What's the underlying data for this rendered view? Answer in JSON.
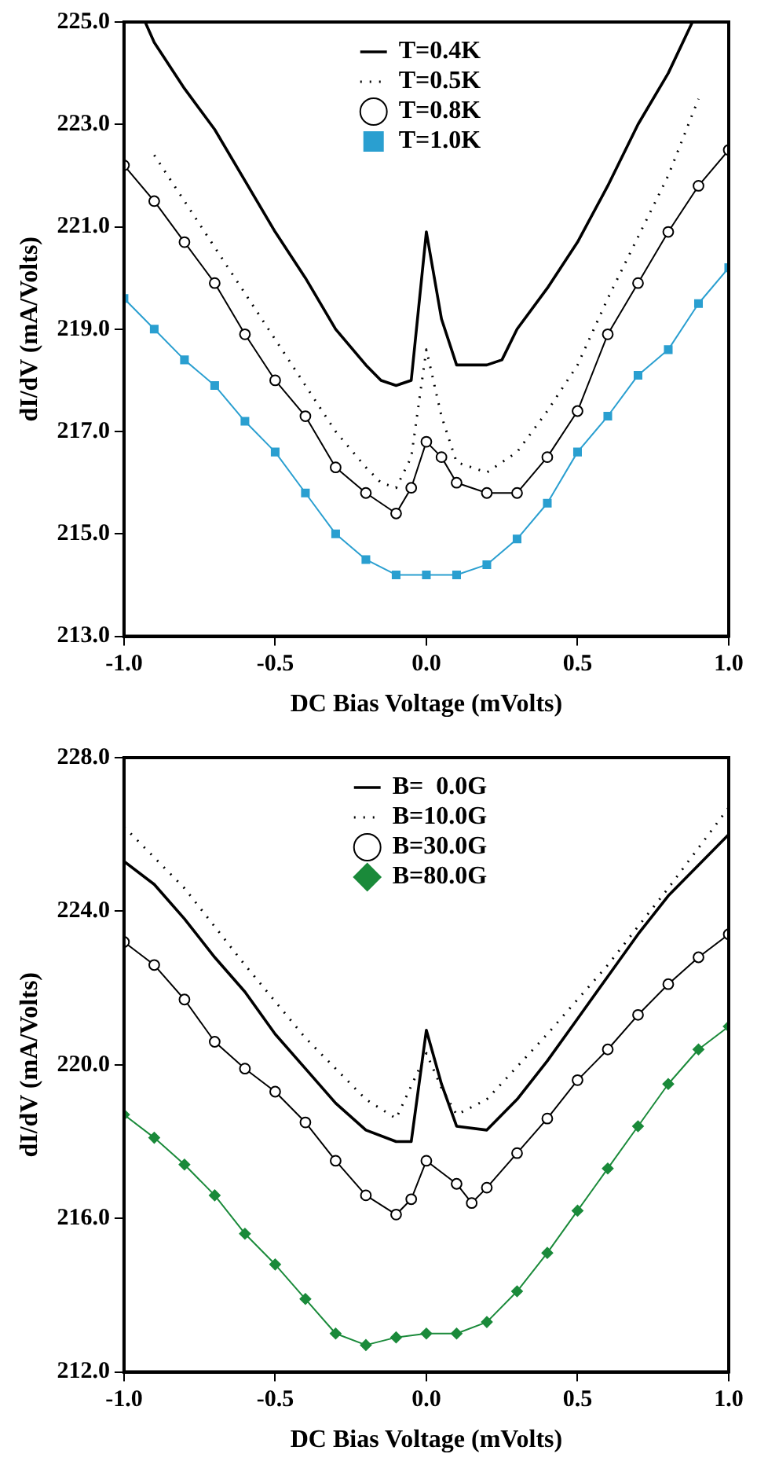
{
  "chart_data": [
    {
      "type": "line",
      "xlabel": "DC Bias Voltage (mVolts)",
      "ylabel": "dI/dV (mA/Volts)",
      "xlim": [
        -1,
        1
      ],
      "xticks": [
        {
          "value": -1,
          "label": "-1.0"
        },
        {
          "value": -0.5,
          "label": "-0.5"
        },
        {
          "value": 0,
          "label": "0.0"
        },
        {
          "value": 0.5,
          "label": "0.5"
        },
        {
          "value": 1,
          "label": "1.0"
        }
      ],
      "ylim": [
        213,
        225
      ],
      "yticks": [
        {
          "value": 213,
          "label": "213.0"
        },
        {
          "value": 215,
          "label": "215.0"
        },
        {
          "value": 217,
          "label": "217.0"
        },
        {
          "value": 219,
          "label": "219.0"
        },
        {
          "value": 221,
          "label": "221.0"
        },
        {
          "value": 223,
          "label": "223.0"
        },
        {
          "value": 225,
          "label": "225.0"
        }
      ],
      "grid": false,
      "legend": "top",
      "series": [
        {
          "name": "T=0.4K",
          "color": "#000000",
          "marker": "none",
          "line_style": "solid",
          "x": [
            -0.93,
            -0.9,
            -0.8,
            -0.7,
            -0.6,
            -0.5,
            -0.4,
            -0.3,
            -0.2,
            -0.15,
            -0.1,
            -0.05,
            0,
            0.05,
            0.1,
            0.2,
            0.25,
            0.3,
            0.4,
            0.5,
            0.6,
            0.7,
            0.8,
            0.88
          ],
          "values": [
            225.0,
            224.6,
            223.7,
            222.9,
            221.9,
            220.9,
            220.0,
            219.0,
            218.3,
            218.0,
            217.9,
            218.0,
            220.9,
            219.2,
            218.3,
            218.3,
            218.4,
            219.0,
            219.8,
            220.7,
            221.8,
            223.0,
            224.0,
            225.0
          ]
        },
        {
          "name": "T=0.5K",
          "color": "#000000",
          "marker": "none",
          "line_style": "dotted",
          "x": [
            -0.9,
            -0.8,
            -0.6,
            -0.4,
            -0.3,
            -0.2,
            -0.15,
            -0.1,
            -0.05,
            0,
            0.05,
            0.1,
            0.2,
            0.3,
            0.4,
            0.5,
            0.6,
            0.7,
            0.8,
            0.9
          ],
          "values": [
            222.4,
            221.5,
            219.7,
            217.9,
            217.0,
            216.3,
            216.0,
            215.9,
            216.5,
            218.6,
            217.3,
            216.4,
            216.2,
            216.6,
            217.4,
            218.3,
            219.6,
            220.8,
            222.0,
            223.5
          ]
        },
        {
          "name": "T=0.8K",
          "color": "#000000",
          "marker": "circle",
          "line_style": "solid",
          "x": [
            -1,
            -0.9,
            -0.8,
            -0.7,
            -0.6,
            -0.5,
            -0.4,
            -0.3,
            -0.2,
            -0.1,
            -0.05,
            0,
            0.05,
            0.1,
            0.2,
            0.3,
            0.4,
            0.5,
            0.6,
            0.7,
            0.8,
            0.9,
            1
          ],
          "values": [
            222.2,
            221.5,
            220.7,
            219.9,
            218.9,
            218.0,
            217.3,
            216.3,
            215.8,
            215.4,
            215.9,
            216.8,
            216.5,
            216.0,
            215.8,
            215.8,
            216.5,
            217.4,
            218.9,
            219.9,
            220.9,
            221.8,
            222.5
          ]
        },
        {
          "name": "T=1.0K",
          "color": "#2a9fd0",
          "marker": "square",
          "line_style": "solid",
          "x": [
            -1,
            -0.9,
            -0.8,
            -0.7,
            -0.6,
            -0.5,
            -0.4,
            -0.3,
            -0.2,
            -0.1,
            0,
            0.1,
            0.2,
            0.3,
            0.4,
            0.5,
            0.6,
            0.7,
            0.8,
            0.9,
            1
          ],
          "values": [
            219.6,
            219.0,
            218.4,
            217.9,
            217.2,
            216.6,
            215.8,
            215.0,
            214.5,
            214.2,
            214.2,
            214.2,
            214.4,
            214.9,
            215.6,
            216.6,
            217.3,
            218.1,
            218.6,
            219.5,
            220.2
          ]
        }
      ]
    },
    {
      "type": "line",
      "xlabel": "DC Bias Voltage (mVolts)",
      "ylabel": "dI/dV (mA/Volts)",
      "xlim": [
        -1,
        1
      ],
      "xticks": [
        {
          "value": -1,
          "label": "-1.0"
        },
        {
          "value": -0.5,
          "label": "-0.5"
        },
        {
          "value": 0,
          "label": "0.0"
        },
        {
          "value": 0.5,
          "label": "0.5"
        },
        {
          "value": 1,
          "label": "1.0"
        }
      ],
      "ylim": [
        212,
        228
      ],
      "yticks": [
        {
          "value": 212,
          "label": "212.0"
        },
        {
          "value": 216,
          "label": "216.0"
        },
        {
          "value": 220,
          "label": "220.0"
        },
        {
          "value": 224,
          "label": "224.0"
        },
        {
          "value": 228,
          "label": "228.0"
        }
      ],
      "grid": false,
      "legend": "top",
      "series": [
        {
          "name": "B=  0.0G",
          "color": "#000000",
          "marker": "none",
          "line_style": "solid",
          "x": [
            -1,
            -0.9,
            -0.8,
            -0.7,
            -0.6,
            -0.5,
            -0.4,
            -0.3,
            -0.2,
            -0.1,
            -0.05,
            0,
            0.05,
            0.1,
            0.2,
            0.3,
            0.4,
            0.5,
            0.6,
            0.7,
            0.8,
            0.9,
            1
          ],
          "values": [
            225.3,
            224.7,
            223.8,
            222.8,
            221.9,
            220.8,
            219.9,
            219.0,
            218.3,
            218.0,
            218.0,
            220.9,
            219.5,
            218.4,
            218.3,
            219.1,
            220.1,
            221.2,
            222.3,
            223.4,
            224.4,
            225.2,
            226.0
          ]
        },
        {
          "name": "B=10.0G",
          "color": "#000000",
          "marker": "none",
          "line_style": "dotted",
          "x": [
            -1,
            -0.8,
            -0.6,
            -0.4,
            -0.2,
            -0.1,
            0,
            0.05,
            0.1,
            0.2,
            0.4,
            0.6,
            0.8,
            1
          ],
          "values": [
            226.2,
            224.6,
            222.6,
            220.7,
            219.1,
            218.6,
            220.3,
            219.4,
            218.7,
            219.1,
            220.8,
            222.6,
            224.6,
            226.7
          ]
        },
        {
          "name": "B=30.0G",
          "color": "#000000",
          "marker": "circle",
          "line_style": "solid",
          "x": [
            -1,
            -0.9,
            -0.8,
            -0.7,
            -0.6,
            -0.5,
            -0.4,
            -0.3,
            -0.2,
            -0.1,
            -0.05,
            0,
            0.1,
            0.15,
            0.2,
            0.3,
            0.4,
            0.5,
            0.6,
            0.7,
            0.8,
            0.9,
            1
          ],
          "values": [
            223.2,
            222.6,
            221.7,
            220.6,
            219.9,
            219.3,
            218.5,
            217.5,
            216.6,
            216.1,
            216.5,
            217.5,
            216.9,
            216.4,
            216.8,
            217.7,
            218.6,
            219.6,
            220.4,
            221.3,
            222.1,
            222.8,
            223.4
          ]
        },
        {
          "name": "B=80.0G",
          "color": "#1a8a3a",
          "marker": "diamond",
          "line_style": "solid",
          "x": [
            -1,
            -0.9,
            -0.8,
            -0.7,
            -0.6,
            -0.5,
            -0.4,
            -0.3,
            -0.2,
            -0.1,
            0,
            0.1,
            0.2,
            0.3,
            0.4,
            0.5,
            0.6,
            0.7,
            0.8,
            0.9,
            1
          ],
          "values": [
            218.7,
            218.1,
            217.4,
            216.6,
            215.6,
            214.8,
            213.9,
            213.0,
            212.7,
            212.9,
            213.0,
            213.0,
            213.3,
            214.1,
            215.1,
            216.2,
            217.3,
            218.4,
            219.5,
            220.4,
            221.0
          ]
        }
      ]
    }
  ]
}
